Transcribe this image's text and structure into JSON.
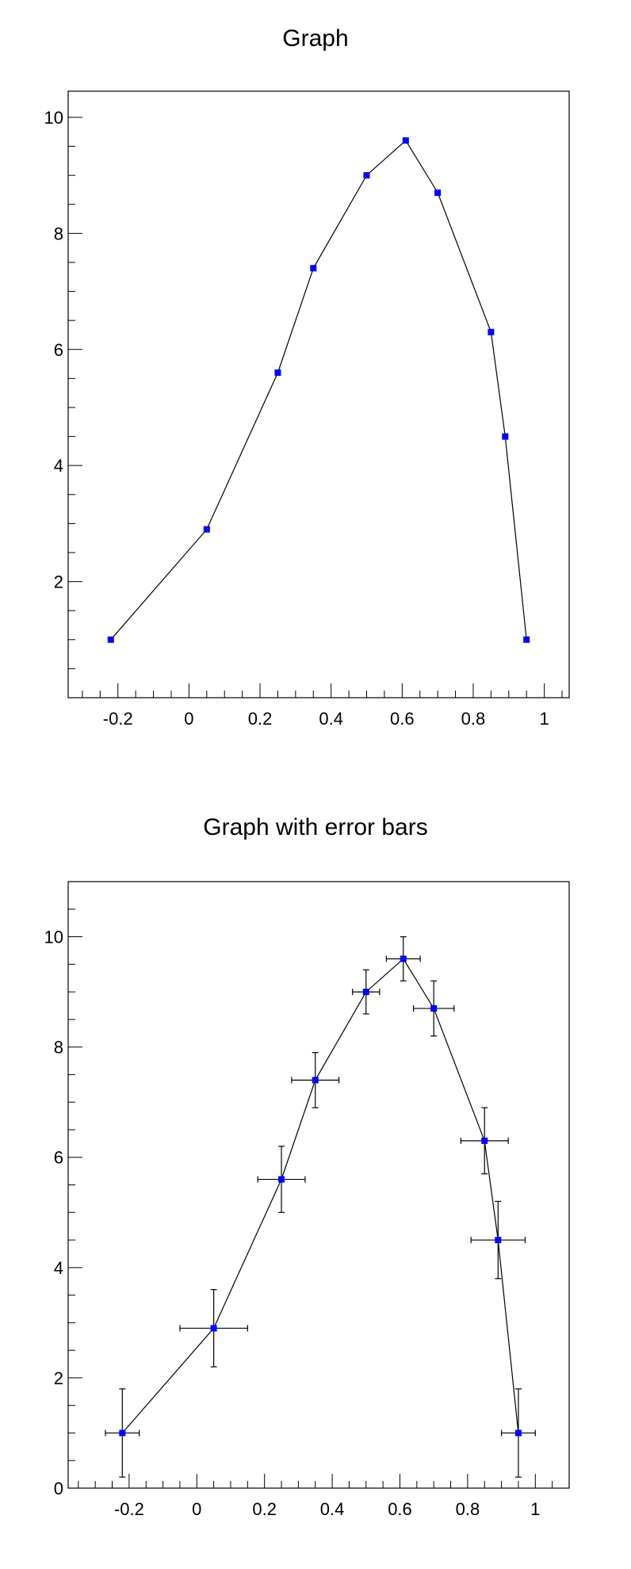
{
  "chart_data": [
    {
      "type": "line",
      "title": "Graph",
      "xlabel": "",
      "ylabel": "",
      "xlim": [
        -0.34,
        1.07
      ],
      "ylim": [
        0.0,
        10.45
      ],
      "x_ticks": [
        "-0.2",
        "0",
        "0.2",
        "0.4",
        "0.6",
        "0.8",
        "1"
      ],
      "y_ticks": [
        "2",
        "4",
        "6",
        "8",
        "10"
      ],
      "grid": false,
      "marker_color": "#0000ff",
      "line_color": "#000000",
      "series": [
        {
          "x": [
            -0.22,
            0.05,
            0.25,
            0.35,
            0.5,
            0.61,
            0.7,
            0.85,
            0.89,
            0.95
          ],
          "y": [
            1.0,
            2.9,
            5.6,
            7.4,
            9.0,
            9.6,
            8.7,
            6.3,
            4.5,
            1.0
          ]
        }
      ]
    },
    {
      "type": "line",
      "title": "Graph with error bars",
      "xlabel": "",
      "ylabel": "",
      "xlim": [
        -0.38,
        1.1
      ],
      "ylim": [
        0.0,
        11.0
      ],
      "x_ticks": [
        "-0.2",
        "0",
        "0.2",
        "0.4",
        "0.6",
        "0.8",
        "1"
      ],
      "y_ticks": [
        "0",
        "2",
        "4",
        "6",
        "8",
        "10"
      ],
      "grid": false,
      "marker_color": "#0000ff",
      "line_color": "#000000",
      "series": [
        {
          "x": [
            -0.22,
            0.05,
            0.25,
            0.35,
            0.5,
            0.61,
            0.7,
            0.85,
            0.89,
            0.95
          ],
          "y": [
            1.0,
            2.9,
            5.6,
            7.4,
            9.0,
            9.6,
            8.7,
            6.3,
            4.5,
            1.0
          ],
          "ex": [
            0.05,
            0.1,
            0.07,
            0.07,
            0.04,
            0.05,
            0.06,
            0.07,
            0.08,
            0.05
          ],
          "ey": [
            0.8,
            0.7,
            0.6,
            0.5,
            0.4,
            0.4,
            0.5,
            0.6,
            0.7,
            0.8
          ]
        }
      ]
    }
  ]
}
